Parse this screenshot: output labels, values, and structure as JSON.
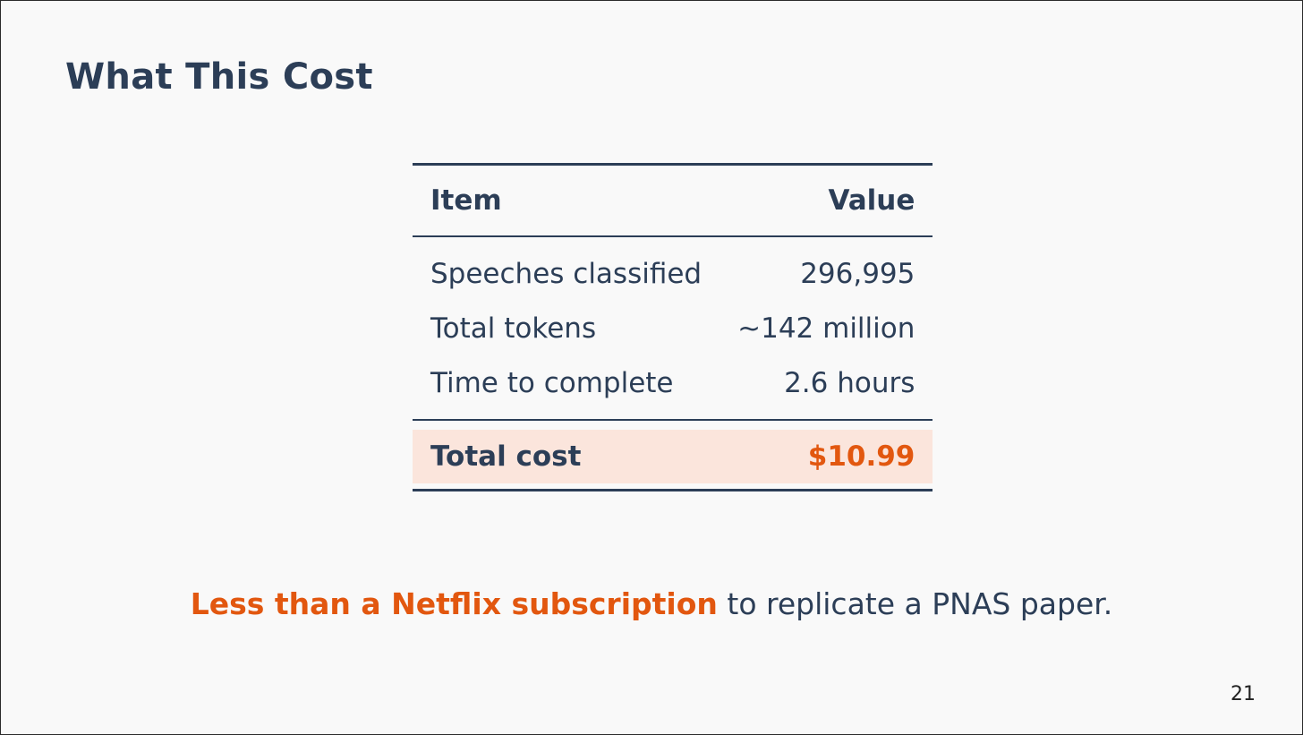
{
  "slide": {
    "title": "What This Cost",
    "page_number": "21"
  },
  "table": {
    "headers": {
      "item": "Item",
      "value": "Value"
    },
    "rows": [
      {
        "item": "Speeches classified",
        "value": "296,995"
      },
      {
        "item": "Total tokens",
        "value": "∼142 million"
      },
      {
        "item": "Time to complete",
        "value": "2.6 hours"
      }
    ],
    "total": {
      "item": "Total cost",
      "value": "$10.99"
    }
  },
  "tagline": {
    "emphasis": "Less than a Netflix subscription",
    "rest": " to replicate a PNAS paper."
  },
  "colors": {
    "title_text": "#2c3e57",
    "accent_orange": "#e2570f",
    "highlight_row": "#fbe5dc",
    "background": "#f9f9f9"
  }
}
